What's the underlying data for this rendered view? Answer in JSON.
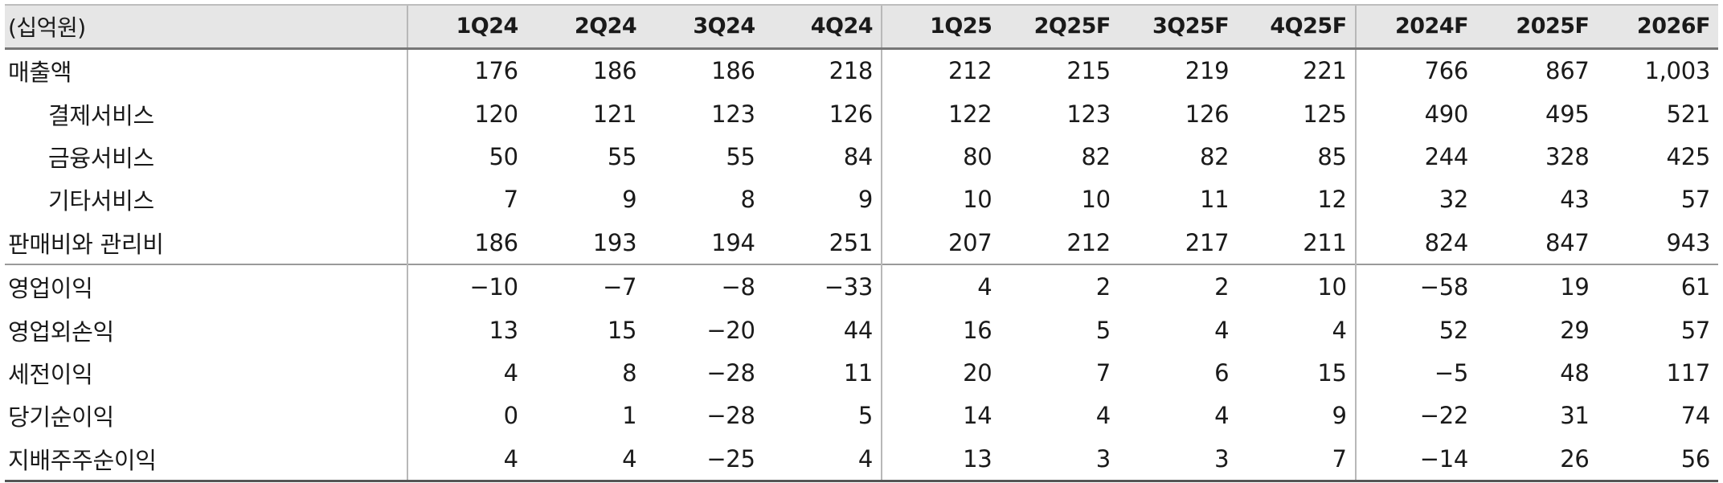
{
  "table": {
    "unit_label": "(십억원)",
    "columns": [
      "1Q24",
      "2Q24",
      "3Q24",
      "4Q24",
      "1Q25",
      "2Q25F",
      "3Q25F",
      "4Q25F",
      "2024F",
      "2025F",
      "2026F"
    ],
    "rows": [
      {
        "label": "매출액",
        "indent": false,
        "values": [
          "176",
          "186",
          "186",
          "218",
          "212",
          "215",
          "219",
          "221",
          "766",
          "867",
          "1,003"
        ]
      },
      {
        "label": "결제서비스",
        "indent": true,
        "values": [
          "120",
          "121",
          "123",
          "126",
          "122",
          "123",
          "126",
          "125",
          "490",
          "495",
          "521"
        ]
      },
      {
        "label": "금융서비스",
        "indent": true,
        "values": [
          "50",
          "55",
          "55",
          "84",
          "80",
          "82",
          "82",
          "85",
          "244",
          "328",
          "425"
        ]
      },
      {
        "label": "기타서비스",
        "indent": true,
        "values": [
          "7",
          "9",
          "8",
          "9",
          "10",
          "10",
          "11",
          "12",
          "32",
          "43",
          "57"
        ]
      },
      {
        "label": "판매비와 관리비",
        "indent": false,
        "values": [
          "186",
          "193",
          "194",
          "251",
          "207",
          "212",
          "217",
          "211",
          "824",
          "847",
          "943"
        ]
      },
      {
        "label": "영업이익",
        "indent": false,
        "values": [
          "−10",
          "−7",
          "−8",
          "−33",
          "4",
          "2",
          "2",
          "10",
          "−58",
          "19",
          "61"
        ]
      },
      {
        "label": "영업외손익",
        "indent": false,
        "values": [
          "13",
          "15",
          "−20",
          "44",
          "16",
          "5",
          "4",
          "4",
          "52",
          "29",
          "57"
        ]
      },
      {
        "label": "세전이익",
        "indent": false,
        "values": [
          "4",
          "8",
          "−28",
          "11",
          "20",
          "7",
          "6",
          "15",
          "−5",
          "48",
          "117"
        ]
      },
      {
        "label": "당기순이익",
        "indent": false,
        "values": [
          "0",
          "1",
          "−28",
          "5",
          "14",
          "4",
          "4",
          "9",
          "−22",
          "31",
          "74"
        ]
      },
      {
        "label": "지배주주순이익",
        "indent": false,
        "values": [
          "4",
          "4",
          "−25",
          "4",
          "13",
          "3",
          "3",
          "7",
          "−14",
          "26",
          "56"
        ]
      }
    ]
  }
}
